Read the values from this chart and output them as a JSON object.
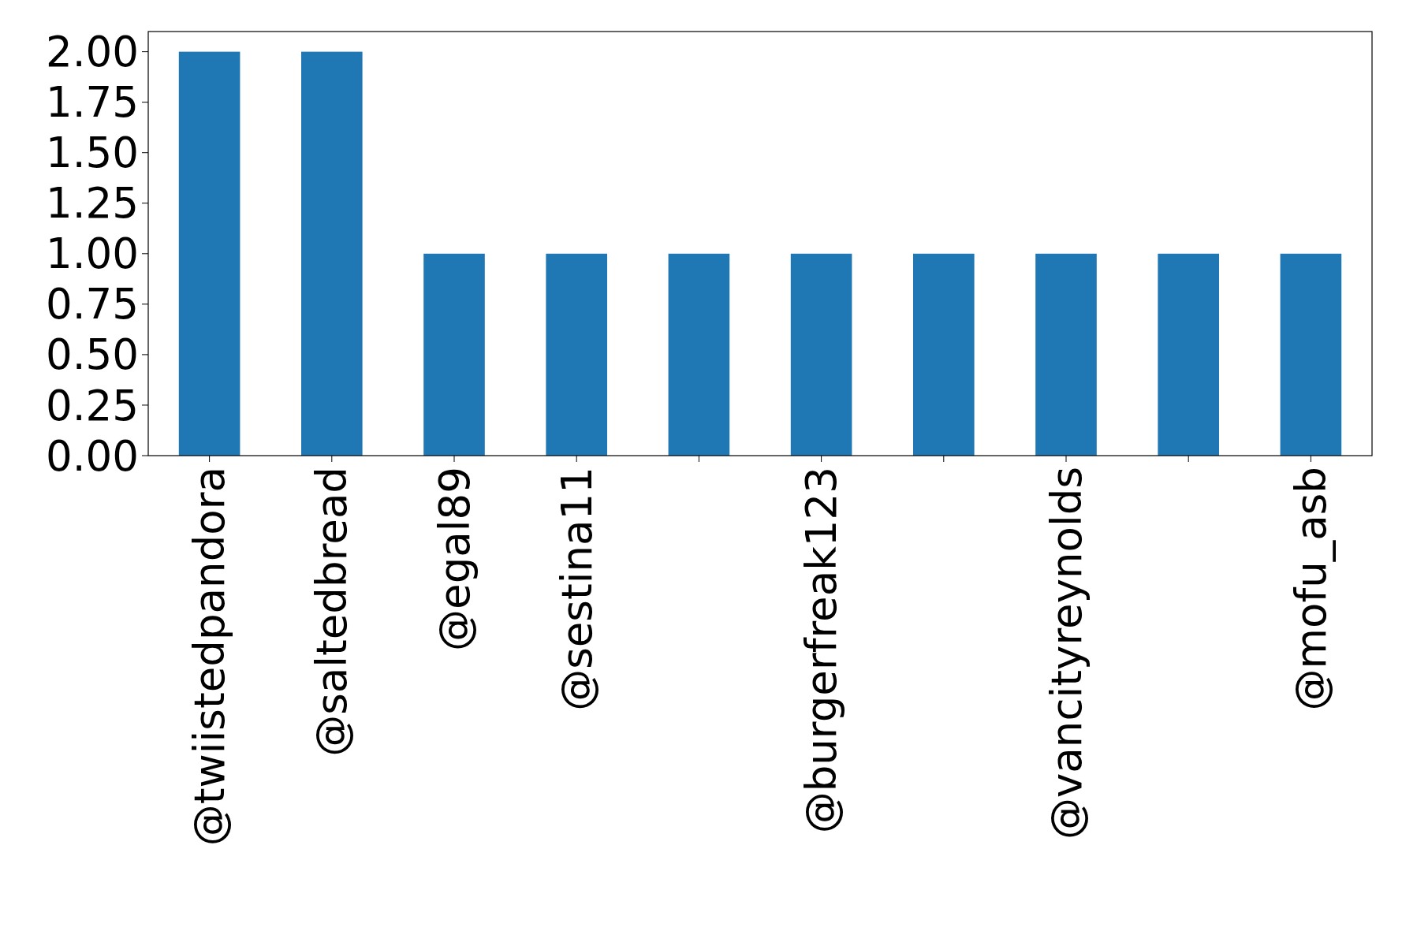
{
  "chart_data": {
    "type": "bar",
    "categories": [
      "@twiistedpandora",
      "@saltedbread",
      "@egal89",
      "@sestina11",
      null,
      "@burgerfreak123",
      null,
      "@vancityreynolds",
      null,
      "@mofu_asb"
    ],
    "values": [
      2,
      2,
      1,
      1,
      1,
      1,
      1,
      1,
      1,
      1
    ],
    "color": "#1f77b4",
    "ylim": [
      0,
      2.1
    ],
    "yticks": [
      {
        "value": 0,
        "label": "0.00"
      },
      {
        "value": 0.25,
        "label": "0.25"
      },
      {
        "value": 0.5,
        "label": "0.50"
      },
      {
        "value": 0.75,
        "label": "0.75"
      },
      {
        "value": 1,
        "label": "1.00"
      },
      {
        "value": 1.25,
        "label": "1.25"
      },
      {
        "value": 1.5,
        "label": "1.50"
      },
      {
        "value": 1.75,
        "label": "1.75"
      },
      {
        "value": 2,
        "label": "2.00"
      }
    ],
    "grid": false
  }
}
